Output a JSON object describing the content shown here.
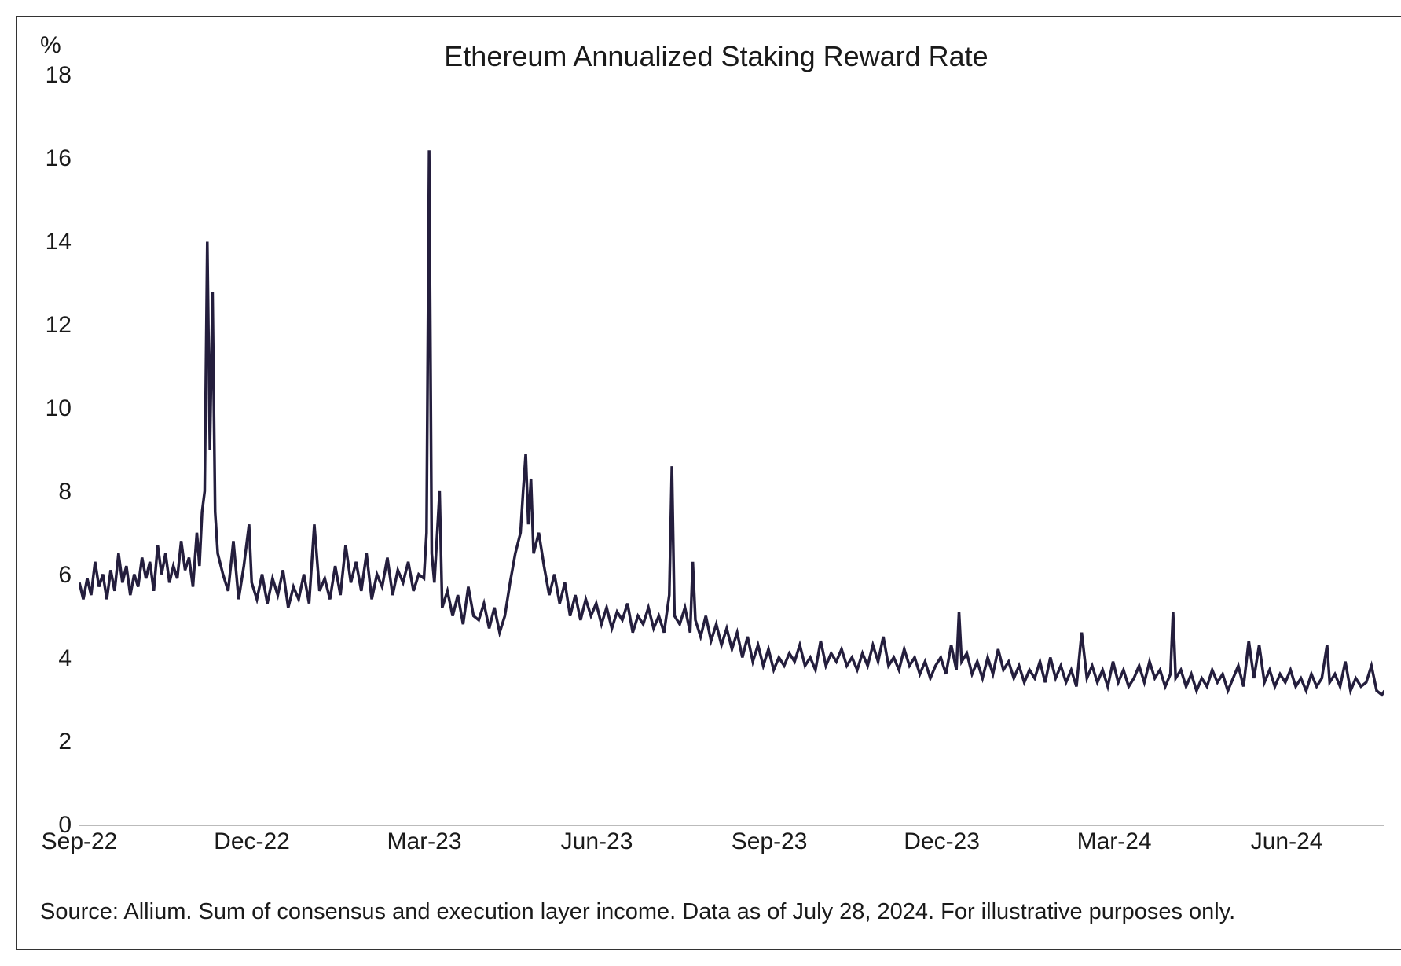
{
  "chart": {
    "type": "line",
    "title": "Ethereum Annualized Staking Reward Rate",
    "y_unit": "%",
    "ylim": [
      0,
      18
    ],
    "yticks": [
      0,
      2,
      4,
      6,
      8,
      10,
      12,
      14,
      16,
      18
    ],
    "xticks": [
      "Sep-22",
      "Dec-22",
      "Mar-23",
      "Jun-23",
      "Sep-23",
      "Dec-23",
      "Mar-24",
      "Jun-24"
    ],
    "xtick_positions": [
      0,
      0.132,
      0.264,
      0.396,
      0.528,
      0.66,
      0.792,
      0.924
    ],
    "line_color": "#241e3d",
    "line_width": 3.5,
    "background_color": "#ffffff",
    "axis_line_color": "#bbbbbb",
    "text_color": "#1a1a1a",
    "title_fontsize": 36,
    "label_fontsize": 30,
    "footnote_fontsize": 29,
    "series": [
      {
        "x": 0.0,
        "y": 5.8
      },
      {
        "x": 0.003,
        "y": 5.4
      },
      {
        "x": 0.006,
        "y": 5.9
      },
      {
        "x": 0.009,
        "y": 5.5
      },
      {
        "x": 0.012,
        "y": 6.3
      },
      {
        "x": 0.015,
        "y": 5.7
      },
      {
        "x": 0.018,
        "y": 6.0
      },
      {
        "x": 0.021,
        "y": 5.4
      },
      {
        "x": 0.024,
        "y": 6.1
      },
      {
        "x": 0.027,
        "y": 5.6
      },
      {
        "x": 0.03,
        "y": 6.5
      },
      {
        "x": 0.033,
        "y": 5.8
      },
      {
        "x": 0.036,
        "y": 6.2
      },
      {
        "x": 0.039,
        "y": 5.5
      },
      {
        "x": 0.042,
        "y": 6.0
      },
      {
        "x": 0.045,
        "y": 5.7
      },
      {
        "x": 0.048,
        "y": 6.4
      },
      {
        "x": 0.051,
        "y": 5.9
      },
      {
        "x": 0.054,
        "y": 6.3
      },
      {
        "x": 0.057,
        "y": 5.6
      },
      {
        "x": 0.06,
        "y": 6.7
      },
      {
        "x": 0.063,
        "y": 6.0
      },
      {
        "x": 0.066,
        "y": 6.5
      },
      {
        "x": 0.069,
        "y": 5.8
      },
      {
        "x": 0.072,
        "y": 6.2
      },
      {
        "x": 0.075,
        "y": 5.9
      },
      {
        "x": 0.078,
        "y": 6.8
      },
      {
        "x": 0.081,
        "y": 6.1
      },
      {
        "x": 0.084,
        "y": 6.4
      },
      {
        "x": 0.087,
        "y": 5.7
      },
      {
        "x": 0.09,
        "y": 7.0
      },
      {
        "x": 0.092,
        "y": 6.2
      },
      {
        "x": 0.094,
        "y": 7.5
      },
      {
        "x": 0.096,
        "y": 8.0
      },
      {
        "x": 0.098,
        "y": 14.0
      },
      {
        "x": 0.1,
        "y": 9.0
      },
      {
        "x": 0.102,
        "y": 12.8
      },
      {
        "x": 0.104,
        "y": 7.5
      },
      {
        "x": 0.106,
        "y": 6.5
      },
      {
        "x": 0.11,
        "y": 6.0
      },
      {
        "x": 0.114,
        "y": 5.6
      },
      {
        "x": 0.118,
        "y": 6.8
      },
      {
        "x": 0.122,
        "y": 5.4
      },
      {
        "x": 0.126,
        "y": 6.2
      },
      {
        "x": 0.13,
        "y": 7.2
      },
      {
        "x": 0.132,
        "y": 5.8
      },
      {
        "x": 0.136,
        "y": 5.4
      },
      {
        "x": 0.14,
        "y": 6.0
      },
      {
        "x": 0.144,
        "y": 5.3
      },
      {
        "x": 0.148,
        "y": 5.9
      },
      {
        "x": 0.152,
        "y": 5.5
      },
      {
        "x": 0.156,
        "y": 6.1
      },
      {
        "x": 0.16,
        "y": 5.2
      },
      {
        "x": 0.164,
        "y": 5.7
      },
      {
        "x": 0.168,
        "y": 5.4
      },
      {
        "x": 0.172,
        "y": 6.0
      },
      {
        "x": 0.176,
        "y": 5.3
      },
      {
        "x": 0.18,
        "y": 7.2
      },
      {
        "x": 0.184,
        "y": 5.6
      },
      {
        "x": 0.188,
        "y": 5.9
      },
      {
        "x": 0.192,
        "y": 5.4
      },
      {
        "x": 0.196,
        "y": 6.2
      },
      {
        "x": 0.2,
        "y": 5.5
      },
      {
        "x": 0.204,
        "y": 6.7
      },
      {
        "x": 0.208,
        "y": 5.8
      },
      {
        "x": 0.212,
        "y": 6.3
      },
      {
        "x": 0.216,
        "y": 5.6
      },
      {
        "x": 0.22,
        "y": 6.5
      },
      {
        "x": 0.224,
        "y": 5.4
      },
      {
        "x": 0.228,
        "y": 6.0
      },
      {
        "x": 0.232,
        "y": 5.7
      },
      {
        "x": 0.236,
        "y": 6.4
      },
      {
        "x": 0.24,
        "y": 5.5
      },
      {
        "x": 0.244,
        "y": 6.1
      },
      {
        "x": 0.248,
        "y": 5.8
      },
      {
        "x": 0.252,
        "y": 6.3
      },
      {
        "x": 0.256,
        "y": 5.6
      },
      {
        "x": 0.26,
        "y": 6.0
      },
      {
        "x": 0.264,
        "y": 5.9
      },
      {
        "x": 0.266,
        "y": 7.0
      },
      {
        "x": 0.268,
        "y": 16.2
      },
      {
        "x": 0.27,
        "y": 6.5
      },
      {
        "x": 0.272,
        "y": 5.8
      },
      {
        "x": 0.276,
        "y": 8.0
      },
      {
        "x": 0.278,
        "y": 5.2
      },
      {
        "x": 0.282,
        "y": 5.6
      },
      {
        "x": 0.286,
        "y": 5.0
      },
      {
        "x": 0.29,
        "y": 5.5
      },
      {
        "x": 0.294,
        "y": 4.8
      },
      {
        "x": 0.298,
        "y": 5.7
      },
      {
        "x": 0.302,
        "y": 5.0
      },
      {
        "x": 0.306,
        "y": 4.9
      },
      {
        "x": 0.31,
        "y": 5.3
      },
      {
        "x": 0.314,
        "y": 4.7
      },
      {
        "x": 0.318,
        "y": 5.2
      },
      {
        "x": 0.322,
        "y": 4.6
      },
      {
        "x": 0.326,
        "y": 5.0
      },
      {
        "x": 0.33,
        "y": 5.8
      },
      {
        "x": 0.334,
        "y": 6.5
      },
      {
        "x": 0.338,
        "y": 7.0
      },
      {
        "x": 0.34,
        "y": 8.0
      },
      {
        "x": 0.342,
        "y": 8.9
      },
      {
        "x": 0.344,
        "y": 7.2
      },
      {
        "x": 0.346,
        "y": 8.3
      },
      {
        "x": 0.348,
        "y": 6.5
      },
      {
        "x": 0.352,
        "y": 7.0
      },
      {
        "x": 0.356,
        "y": 6.2
      },
      {
        "x": 0.36,
        "y": 5.5
      },
      {
        "x": 0.364,
        "y": 6.0
      },
      {
        "x": 0.368,
        "y": 5.3
      },
      {
        "x": 0.372,
        "y": 5.8
      },
      {
        "x": 0.376,
        "y": 5.0
      },
      {
        "x": 0.38,
        "y": 5.5
      },
      {
        "x": 0.384,
        "y": 4.9
      },
      {
        "x": 0.388,
        "y": 5.4
      },
      {
        "x": 0.392,
        "y": 5.0
      },
      {
        "x": 0.396,
        "y": 5.3
      },
      {
        "x": 0.4,
        "y": 4.8
      },
      {
        "x": 0.404,
        "y": 5.2
      },
      {
        "x": 0.408,
        "y": 4.7
      },
      {
        "x": 0.412,
        "y": 5.1
      },
      {
        "x": 0.416,
        "y": 4.9
      },
      {
        "x": 0.42,
        "y": 5.3
      },
      {
        "x": 0.424,
        "y": 4.6
      },
      {
        "x": 0.428,
        "y": 5.0
      },
      {
        "x": 0.432,
        "y": 4.8
      },
      {
        "x": 0.436,
        "y": 5.2
      },
      {
        "x": 0.44,
        "y": 4.7
      },
      {
        "x": 0.444,
        "y": 5.0
      },
      {
        "x": 0.448,
        "y": 4.6
      },
      {
        "x": 0.452,
        "y": 5.5
      },
      {
        "x": 0.454,
        "y": 8.6
      },
      {
        "x": 0.456,
        "y": 5.0
      },
      {
        "x": 0.46,
        "y": 4.8
      },
      {
        "x": 0.464,
        "y": 5.2
      },
      {
        "x": 0.468,
        "y": 4.6
      },
      {
        "x": 0.47,
        "y": 6.3
      },
      {
        "x": 0.472,
        "y": 4.9
      },
      {
        "x": 0.476,
        "y": 4.5
      },
      {
        "x": 0.48,
        "y": 5.0
      },
      {
        "x": 0.484,
        "y": 4.4
      },
      {
        "x": 0.488,
        "y": 4.8
      },
      {
        "x": 0.492,
        "y": 4.3
      },
      {
        "x": 0.496,
        "y": 4.7
      },
      {
        "x": 0.5,
        "y": 4.2
      },
      {
        "x": 0.504,
        "y": 4.6
      },
      {
        "x": 0.508,
        "y": 4.0
      },
      {
        "x": 0.512,
        "y": 4.5
      },
      {
        "x": 0.516,
        "y": 3.9
      },
      {
        "x": 0.52,
        "y": 4.3
      },
      {
        "x": 0.524,
        "y": 3.8
      },
      {
        "x": 0.528,
        "y": 4.2
      },
      {
        "x": 0.532,
        "y": 3.7
      },
      {
        "x": 0.536,
        "y": 4.0
      },
      {
        "x": 0.54,
        "y": 3.8
      },
      {
        "x": 0.544,
        "y": 4.1
      },
      {
        "x": 0.548,
        "y": 3.9
      },
      {
        "x": 0.552,
        "y": 4.3
      },
      {
        "x": 0.556,
        "y": 3.8
      },
      {
        "x": 0.56,
        "y": 4.0
      },
      {
        "x": 0.564,
        "y": 3.7
      },
      {
        "x": 0.568,
        "y": 4.4
      },
      {
        "x": 0.572,
        "y": 3.8
      },
      {
        "x": 0.576,
        "y": 4.1
      },
      {
        "x": 0.58,
        "y": 3.9
      },
      {
        "x": 0.584,
        "y": 4.2
      },
      {
        "x": 0.588,
        "y": 3.8
      },
      {
        "x": 0.592,
        "y": 4.0
      },
      {
        "x": 0.596,
        "y": 3.7
      },
      {
        "x": 0.6,
        "y": 4.1
      },
      {
        "x": 0.604,
        "y": 3.8
      },
      {
        "x": 0.608,
        "y": 4.3
      },
      {
        "x": 0.612,
        "y": 3.9
      },
      {
        "x": 0.616,
        "y": 4.5
      },
      {
        "x": 0.62,
        "y": 3.8
      },
      {
        "x": 0.624,
        "y": 4.0
      },
      {
        "x": 0.628,
        "y": 3.7
      },
      {
        "x": 0.632,
        "y": 4.2
      },
      {
        "x": 0.636,
        "y": 3.8
      },
      {
        "x": 0.64,
        "y": 4.0
      },
      {
        "x": 0.644,
        "y": 3.6
      },
      {
        "x": 0.648,
        "y": 3.9
      },
      {
        "x": 0.652,
        "y": 3.5
      },
      {
        "x": 0.656,
        "y": 3.8
      },
      {
        "x": 0.66,
        "y": 4.0
      },
      {
        "x": 0.664,
        "y": 3.6
      },
      {
        "x": 0.668,
        "y": 4.3
      },
      {
        "x": 0.672,
        "y": 3.7
      },
      {
        "x": 0.674,
        "y": 5.1
      },
      {
        "x": 0.676,
        "y": 3.9
      },
      {
        "x": 0.68,
        "y": 4.1
      },
      {
        "x": 0.684,
        "y": 3.6
      },
      {
        "x": 0.688,
        "y": 3.9
      },
      {
        "x": 0.692,
        "y": 3.5
      },
      {
        "x": 0.696,
        "y": 4.0
      },
      {
        "x": 0.7,
        "y": 3.6
      },
      {
        "x": 0.704,
        "y": 4.2
      },
      {
        "x": 0.708,
        "y": 3.7
      },
      {
        "x": 0.712,
        "y": 3.9
      },
      {
        "x": 0.716,
        "y": 3.5
      },
      {
        "x": 0.72,
        "y": 3.8
      },
      {
        "x": 0.724,
        "y": 3.4
      },
      {
        "x": 0.728,
        "y": 3.7
      },
      {
        "x": 0.732,
        "y": 3.5
      },
      {
        "x": 0.736,
        "y": 3.9
      },
      {
        "x": 0.74,
        "y": 3.4
      },
      {
        "x": 0.744,
        "y": 4.0
      },
      {
        "x": 0.748,
        "y": 3.5
      },
      {
        "x": 0.752,
        "y": 3.8
      },
      {
        "x": 0.756,
        "y": 3.4
      },
      {
        "x": 0.76,
        "y": 3.7
      },
      {
        "x": 0.764,
        "y": 3.3
      },
      {
        "x": 0.768,
        "y": 4.6
      },
      {
        "x": 0.772,
        "y": 3.5
      },
      {
        "x": 0.776,
        "y": 3.8
      },
      {
        "x": 0.78,
        "y": 3.4
      },
      {
        "x": 0.784,
        "y": 3.7
      },
      {
        "x": 0.788,
        "y": 3.3
      },
      {
        "x": 0.792,
        "y": 3.9
      },
      {
        "x": 0.796,
        "y": 3.4
      },
      {
        "x": 0.8,
        "y": 3.7
      },
      {
        "x": 0.804,
        "y": 3.3
      },
      {
        "x": 0.808,
        "y": 3.5
      },
      {
        "x": 0.812,
        "y": 3.8
      },
      {
        "x": 0.816,
        "y": 3.4
      },
      {
        "x": 0.82,
        "y": 3.9
      },
      {
        "x": 0.824,
        "y": 3.5
      },
      {
        "x": 0.828,
        "y": 3.7
      },
      {
        "x": 0.832,
        "y": 3.3
      },
      {
        "x": 0.836,
        "y": 3.6
      },
      {
        "x": 0.838,
        "y": 5.1
      },
      {
        "x": 0.84,
        "y": 3.5
      },
      {
        "x": 0.844,
        "y": 3.7
      },
      {
        "x": 0.848,
        "y": 3.3
      },
      {
        "x": 0.852,
        "y": 3.6
      },
      {
        "x": 0.856,
        "y": 3.2
      },
      {
        "x": 0.86,
        "y": 3.5
      },
      {
        "x": 0.864,
        "y": 3.3
      },
      {
        "x": 0.868,
        "y": 3.7
      },
      {
        "x": 0.872,
        "y": 3.4
      },
      {
        "x": 0.876,
        "y": 3.6
      },
      {
        "x": 0.88,
        "y": 3.2
      },
      {
        "x": 0.884,
        "y": 3.5
      },
      {
        "x": 0.888,
        "y": 3.8
      },
      {
        "x": 0.892,
        "y": 3.3
      },
      {
        "x": 0.896,
        "y": 4.4
      },
      {
        "x": 0.9,
        "y": 3.5
      },
      {
        "x": 0.904,
        "y": 4.3
      },
      {
        "x": 0.908,
        "y": 3.4
      },
      {
        "x": 0.912,
        "y": 3.7
      },
      {
        "x": 0.916,
        "y": 3.3
      },
      {
        "x": 0.92,
        "y": 3.6
      },
      {
        "x": 0.924,
        "y": 3.4
      },
      {
        "x": 0.928,
        "y": 3.7
      },
      {
        "x": 0.932,
        "y": 3.3
      },
      {
        "x": 0.936,
        "y": 3.5
      },
      {
        "x": 0.94,
        "y": 3.2
      },
      {
        "x": 0.944,
        "y": 3.6
      },
      {
        "x": 0.948,
        "y": 3.3
      },
      {
        "x": 0.952,
        "y": 3.5
      },
      {
        "x": 0.956,
        "y": 4.3
      },
      {
        "x": 0.958,
        "y": 3.4
      },
      {
        "x": 0.962,
        "y": 3.6
      },
      {
        "x": 0.966,
        "y": 3.3
      },
      {
        "x": 0.97,
        "y": 3.9
      },
      {
        "x": 0.974,
        "y": 3.2
      },
      {
        "x": 0.978,
        "y": 3.5
      },
      {
        "x": 0.982,
        "y": 3.3
      },
      {
        "x": 0.986,
        "y": 3.4
      },
      {
        "x": 0.99,
        "y": 3.8
      },
      {
        "x": 0.994,
        "y": 3.2
      },
      {
        "x": 0.998,
        "y": 3.1
      },
      {
        "x": 1.0,
        "y": 3.2
      }
    ]
  },
  "footnote": "Source: Allium. Sum of consensus and execution layer income. Data as of July 28, 2024. For illustrative purposes only."
}
